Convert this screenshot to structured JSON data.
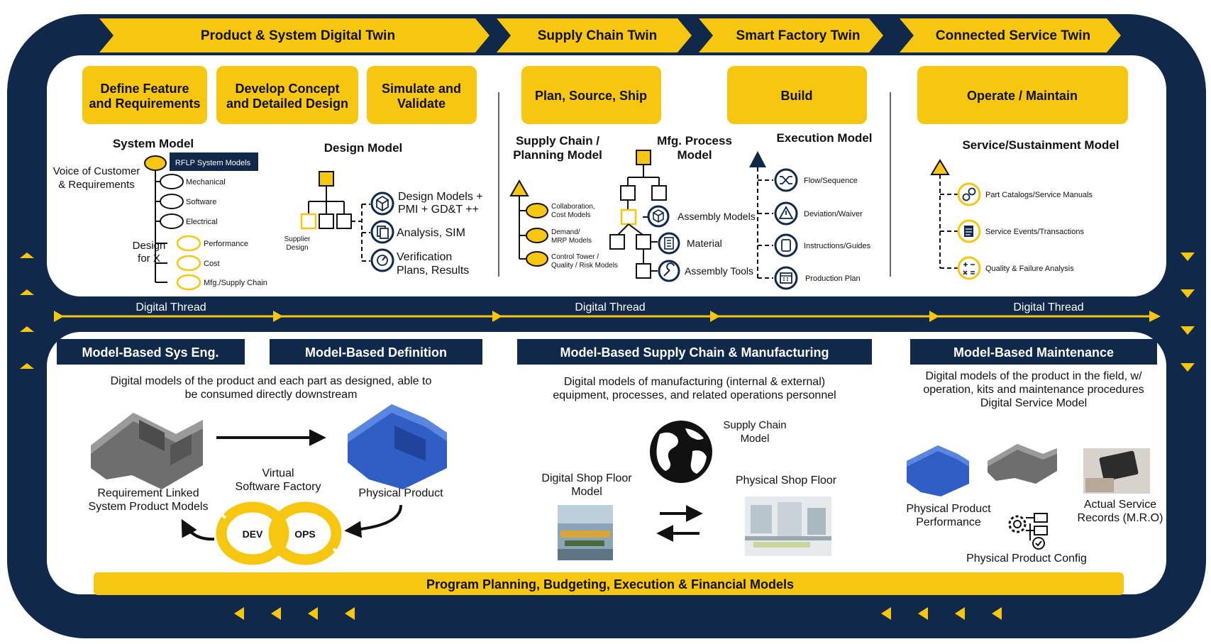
{
  "colors": {
    "navy": "#10284a",
    "yellow": "#f7c610",
    "white": "#ffffff",
    "black": "#111111",
    "blue": "#2f5fc4",
    "gray": "#6e6e6e"
  },
  "top_chevrons": [
    "Product & System Digital Twin",
    "Supply Chain Twin",
    "Smart Factory Twin",
    "Connected Service Twin"
  ],
  "phases": [
    {
      "l1": "Define Feature",
      "l2": "and Requirements"
    },
    {
      "l1": "Develop Concept",
      "l2": "and Detailed Design"
    },
    {
      "l1": "Simulate and",
      "l2": "Validate"
    },
    {
      "l1": "Plan, Source, Ship",
      "l2": ""
    },
    {
      "l1": "Build",
      "l2": ""
    },
    {
      "l1": "Operate / Maintain",
      "l2": ""
    }
  ],
  "system_model": {
    "title": "System Model",
    "voice_l1": "Voice of Customer",
    "voice_l2": "& Requirements",
    "banner": "RFLP System Models",
    "items": [
      "Mechanical",
      "Software",
      "Electrical"
    ],
    "dfx_l1": "Design",
    "dfx_l2": "for X",
    "dfx_items": [
      "Performance",
      "Cost",
      "Mfg./Supply Chain"
    ]
  },
  "design_model": {
    "title": "Design Model",
    "supplier_l1": "Supplier",
    "supplier_l2": "Design",
    "items": [
      {
        "l1": "Design Models +",
        "l2": "PMI + GD&T ++",
        "icon": "cube-icon"
      },
      {
        "l1": "Analysis, SIM",
        "l2": "",
        "icon": "documents-icon"
      },
      {
        "l1": "Verification",
        "l2": "Plans, Results",
        "icon": "dial-icon"
      }
    ]
  },
  "supply_model": {
    "title_l1": "Supply Chain /",
    "title_l2": "Planning Model",
    "items": [
      {
        "l1": "Collaboration,",
        "l2": "Cost Models"
      },
      {
        "l1": "Demand/",
        "l2": "MRP Models"
      },
      {
        "l1": "Control Tower /",
        "l2": "Quality / Risk Models"
      }
    ]
  },
  "mfg_model": {
    "title_l1": "Mfg. Process",
    "title_l2": "Model",
    "items": [
      {
        "label": "Assembly Models",
        "icon": "cube-icon"
      },
      {
        "label": "Material",
        "icon": "list-icon"
      },
      {
        "label": "Assembly Tools",
        "icon": "wrench-icon"
      }
    ]
  },
  "exec_model": {
    "title": "Execution Model",
    "items": [
      {
        "label": "Flow/Sequence",
        "icon": "shuffle-icon"
      },
      {
        "label": "Deviation/Waiver",
        "icon": "warning-icon"
      },
      {
        "label": "Instructions/Guides",
        "icon": "clipboard-icon"
      },
      {
        "label": "Production Plan",
        "icon": "calendar-icon"
      }
    ]
  },
  "service_model": {
    "title": "Service/Sustainment Model",
    "items": [
      {
        "label": "Part Catalogs/Service Manuals",
        "icon": "link-icon"
      },
      {
        "label": "Service Events/Transactions",
        "icon": "document-icon"
      },
      {
        "label": "Quality & Failure Analysis",
        "icon": "calculator-icon"
      }
    ]
  },
  "digital_thread": [
    "Digital Thread",
    "Digital Thread",
    "Digital Thread"
  ],
  "bottom_headers": [
    "Model-Based Sys Eng.",
    "Model-Based Definition",
    "Model-Based Supply Chain & Manufacturing",
    "Model-Based Maintenance"
  ],
  "mbd": {
    "desc_l1": "Digital models of the product and each part as designed, able to",
    "desc_l2": "be consumed directly downstream",
    "req_l1": "Requirement Linked",
    "req_l2": "System Product Models",
    "vsf_l1": "Virtual",
    "vsf_l2": "Software Factory",
    "physical": "Physical Product",
    "dev": "DEV",
    "ops": "OPS"
  },
  "mbsc": {
    "desc_l1": "Digital models of manufacturing (internal & external)",
    "desc_l2": "equipment, processes, and related operations personnel",
    "sc_l1": "Supply Chain",
    "sc_l2": "Model",
    "dsf_l1": "Digital Shop Floor",
    "dsf_l2": "Model",
    "psf": "Physical Shop Floor"
  },
  "mbm": {
    "desc_l1": "Digital models of the product in the field, w/",
    "desc_l2": "operation, kits and maintenance procedures",
    "desc_l3": "Digital Service Model",
    "perf_l1": "Physical Product",
    "perf_l2": "Performance",
    "rec_l1": "Actual Service",
    "rec_l2": "Records (M.R.O)",
    "config": "Physical Product Config"
  },
  "bottom_bar": "Program Planning, Budgeting, Execution & Financial Models"
}
